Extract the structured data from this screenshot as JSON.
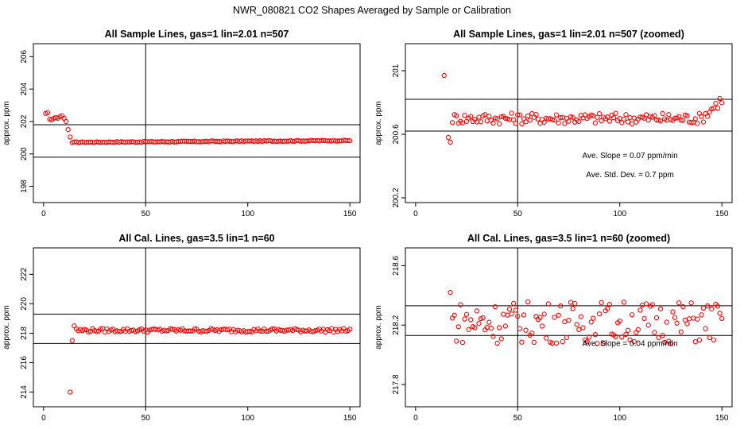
{
  "page_title": "NWR_080821  CO2 Shapes Averaged by Sample or Calibration",
  "chart_data": [
    {
      "type": "scatter",
      "title": "All Sample Lines, gas=1 lin=2.01 n=507",
      "xlabel": "",
      "ylabel": "approx. ppm",
      "xlim": [
        -5,
        155
      ],
      "ylim": [
        197,
        206.8
      ],
      "xticks": [
        0,
        50,
        100,
        150
      ],
      "yticks": [
        198,
        200,
        202,
        204,
        206
      ],
      "color": "#ff0000",
      "vline": 50,
      "hlines": [
        199.8,
        201.8
      ],
      "annotations": [],
      "gen": {
        "mode": "sample",
        "x0": 1,
        "x1": 150,
        "first": 15,
        "base": 200.72,
        "slope": 0.0008,
        "amp": 0.03,
        "early": [
          202.5,
          202.55,
          202.15,
          202.1,
          202.2,
          202.25,
          202.2,
          202.3,
          202.35,
          202.2,
          202.0,
          201.5,
          201.05,
          200.7
        ]
      }
    },
    {
      "type": "scatter",
      "title": "All Sample Lines, gas=1 lin=2.01 n=507 (zoomed)",
      "xlabel": "",
      "ylabel": "approx. ppm",
      "xlim": [
        -5,
        155
      ],
      "ylim": [
        200.17,
        201.17
      ],
      "xticks": [
        0,
        50,
        100,
        150
      ],
      "yticks": [
        200.2,
        200.6,
        201.0
      ],
      "color": "#ff0000",
      "vline": 50,
      "hlines": [
        200.62,
        200.82
      ],
      "annotations": [
        {
          "text": "Ave. Slope =  0.07  ppm/min",
          "x": 105,
          "y": 200.45
        },
        {
          "text": "Ave. Std. Dev. =  0.7  ppm",
          "x": 105,
          "y": 200.33
        }
      ],
      "gen": {
        "mode": "zoom_sample",
        "x0": 14,
        "x1": 150,
        "first": 200.97,
        "base": 200.7,
        "amp": 0.035
      }
    },
    {
      "type": "scatter",
      "title": "All Cal. Lines, gas=3.5 lin=1 n=60",
      "xlabel": "",
      "ylabel": "approx. ppm",
      "xlim": [
        -5,
        155
      ],
      "ylim": [
        213,
        223.8
      ],
      "xticks": [
        0,
        50,
        100,
        150
      ],
      "yticks": [
        214,
        216,
        218,
        220,
        222
      ],
      "color": "#ff0000",
      "vline": 50,
      "hlines": [
        217.3,
        219.3
      ],
      "annotations": [],
      "gen": {
        "mode": "cal",
        "x0": 13,
        "x1": 150,
        "early": [
          214.0,
          217.5,
          218.5,
          218.3
        ],
        "base": 218.2,
        "amp": 0.12
      }
    },
    {
      "type": "scatter",
      "title": "All Cal. Lines, gas=3.5 lin=1 n=60 (zoomed)",
      "xlabel": "",
      "ylabel": "approx. ppm",
      "xlim": [
        -5,
        155
      ],
      "ylim": [
        217.65,
        218.72
      ],
      "xticks": [
        0,
        50,
        100,
        150
      ],
      "yticks": [
        217.8,
        218.2,
        218.6
      ],
      "color": "#ff0000",
      "vline": 50,
      "hlines": [
        218.13,
        218.33
      ],
      "annotations": [
        {
          "text": "Ave. Slope =  0.04  ppm/min",
          "x": 105,
          "y": 218.06
        }
      ],
      "gen": {
        "mode": "zoom_cal",
        "x0": 15,
        "x1": 150,
        "base": 218.22,
        "amp": 0.09,
        "first": 218.42
      }
    }
  ]
}
